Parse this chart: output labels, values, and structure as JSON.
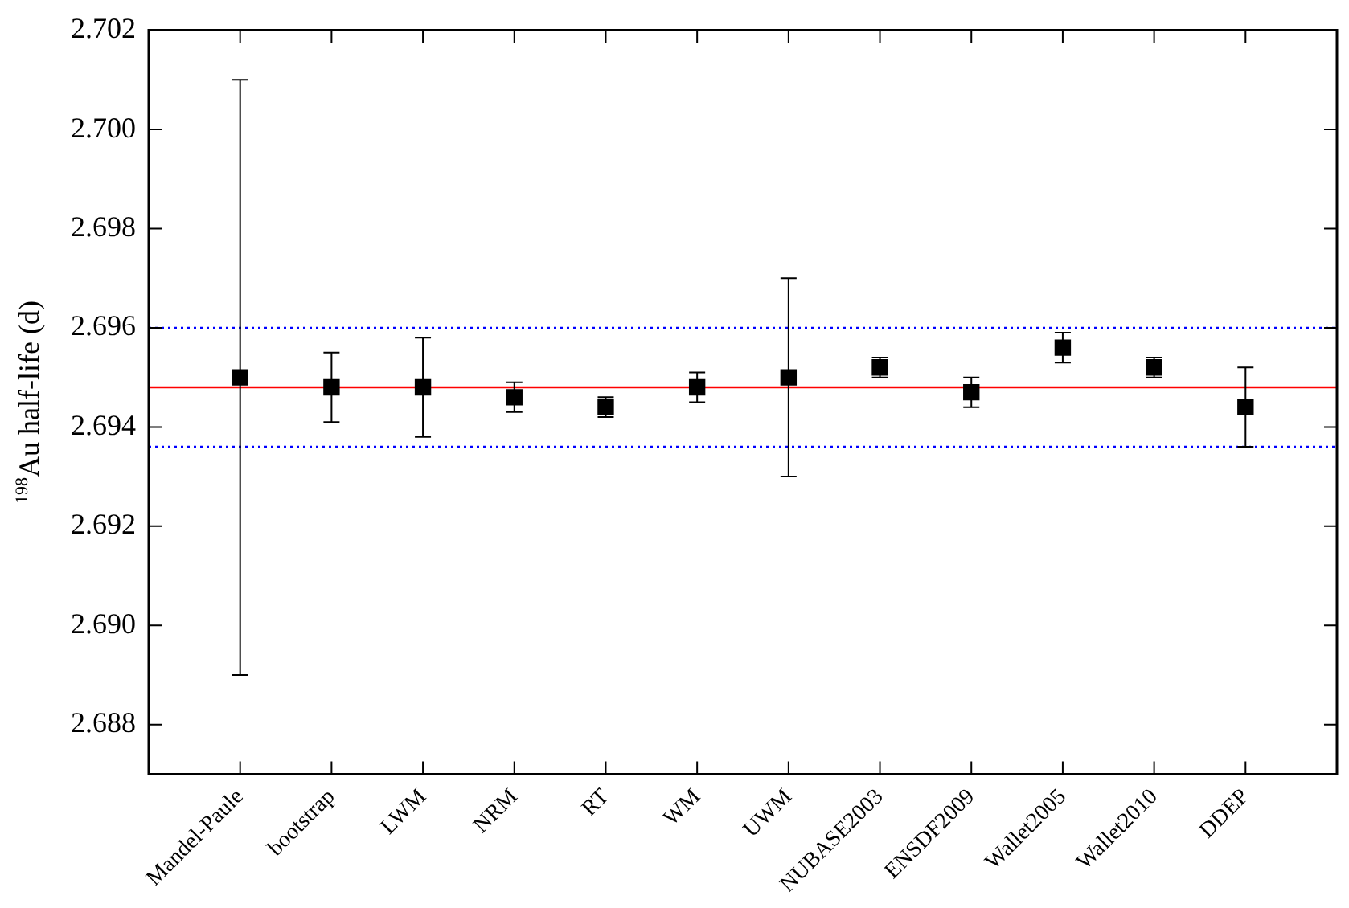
{
  "chart_data": {
    "type": "scatter",
    "ylabel": "$^{198}$Au half-life (d)",
    "categories": [
      "Mandel-Paule",
      "bootstrap",
      "LWM",
      "NRM",
      "RT",
      "WM",
      "UWM",
      "NUBASE2003",
      "ENSDF2009",
      "Wallet2005",
      "Wallet2010",
      "DDEP"
    ],
    "values": [
      2.695,
      2.6948,
      2.6948,
      2.6946,
      2.6944,
      2.6948,
      2.695,
      2.6952,
      2.6947,
      2.6956,
      2.6952,
      2.6944
    ],
    "errors": [
      0.006,
      0.0007,
      0.001,
      0.0003,
      0.0002,
      0.0003,
      0.002,
      0.0002,
      0.0003,
      0.0003,
      0.0002,
      0.0008
    ],
    "color": "#000000",
    "marker": "square",
    "grid": false,
    "legend": false,
    "ylim": [
      2.687,
      2.702
    ],
    "yticks": [
      {
        "value": 2.688,
        "label": "2.688"
      },
      {
        "value": 2.69,
        "label": "2.690"
      },
      {
        "value": 2.692,
        "label": "2.692"
      },
      {
        "value": 2.694,
        "label": "2.694"
      },
      {
        "value": 2.696,
        "label": "2.696"
      },
      {
        "value": 2.698,
        "label": "2.698"
      },
      {
        "value": 2.7,
        "label": "2.700"
      },
      {
        "value": 2.702,
        "label": "2.702"
      }
    ],
    "ref_lines": [
      {
        "axis": "y",
        "value": 2.6948,
        "color": "#ff0000",
        "line_style": "solid"
      },
      {
        "axis": "y",
        "value": 2.696,
        "color": "#0000ff",
        "line_style": "dotted"
      },
      {
        "axis": "y",
        "value": 2.6936,
        "color": "#0000ff",
        "line_style": "dotted"
      }
    ]
  }
}
